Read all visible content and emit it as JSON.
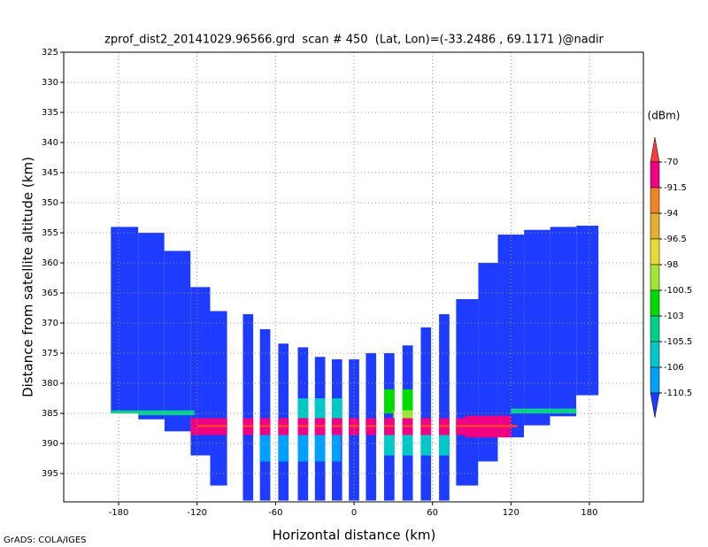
{
  "chart_data": {
    "type": "heatmap",
    "title": "zprof_dist2_20141029.96566.grd  scan # 450  (Lat, Lon)=(-33.2486 , 69.1171 )@nadir",
    "x_label": "Horizontal distance (km)",
    "y_label": "Distance from satellite altitude (km)",
    "footer": "GrADS: COLA/IGES",
    "colorbar_unit": "(dBm)",
    "xlim": [
      -222,
      221.3
    ],
    "ylim": [
      325,
      399.7
    ],
    "y_reversed": true,
    "xticks": [
      -180,
      -120,
      -60,
      0,
      60,
      120,
      180
    ],
    "yticks": [
      325,
      330,
      335,
      340,
      345,
      350,
      355,
      360,
      365,
      370,
      375,
      380,
      385,
      390,
      395
    ],
    "grid": true,
    "levels": [
      -70,
      -91.5,
      -94,
      -96.5,
      -98,
      -100.5,
      -103,
      -105.5,
      -106,
      -110.5
    ],
    "colors": [
      "#fa3c3c",
      "#f00082",
      "#f08228",
      "#e6af2d",
      "#e6dc32",
      "#a0e632",
      "#00dc00",
      "#00d28c",
      "#00c8c8",
      "#00a0ff",
      "#1e3cff"
    ],
    "field": {
      "background_value": -112,
      "columns": [
        {
          "x0": -186,
          "x1": -165,
          "top": 354,
          "bottom": 385
        },
        {
          "x0": -165,
          "x1": -145,
          "top": 355,
          "bottom": 386
        },
        {
          "x0": -145,
          "x1": -125,
          "top": 358,
          "bottom": 388
        },
        {
          "x0": -125,
          "x1": -110,
          "top": 364,
          "bottom": 392
        },
        {
          "x0": -110,
          "x1": -97,
          "top": 368,
          "bottom": 397
        },
        {
          "x0": -85,
          "x1": -77,
          "top": 368.5,
          "bottom": 399.5
        },
        {
          "x0": -72,
          "x1": -64,
          "top": 371,
          "bottom": 399.5
        },
        {
          "x0": -58,
          "x1": -50,
          "top": 373.4,
          "bottom": 399.5
        },
        {
          "x0": -43,
          "x1": -35,
          "top": 374,
          "bottom": 399.5
        },
        {
          "x0": -30,
          "x1": -22,
          "top": 375.6,
          "bottom": 399.5
        },
        {
          "x0": -17,
          "x1": -9,
          "top": 376,
          "bottom": 399.5
        },
        {
          "x0": -4,
          "x1": 4,
          "top": 376,
          "bottom": 399.5
        },
        {
          "x0": 9,
          "x1": 17,
          "top": 375,
          "bottom": 399.5
        },
        {
          "x0": 23,
          "x1": 31,
          "top": 375,
          "bottom": 399.5
        },
        {
          "x0": 37,
          "x1": 45,
          "top": 373.7,
          "bottom": 399.5
        },
        {
          "x0": 51,
          "x1": 59,
          "top": 370.7,
          "bottom": 399.5
        },
        {
          "x0": 65,
          "x1": 73,
          "top": 368.5,
          "bottom": 399.5
        },
        {
          "x0": 78,
          "x1": 95,
          "top": 366,
          "bottom": 397
        },
        {
          "x0": 95,
          "x1": 110,
          "top": 360,
          "bottom": 393
        },
        {
          "x0": 110,
          "x1": 130,
          "top": 355.3,
          "bottom": 389
        },
        {
          "x0": 130,
          "x1": 150,
          "top": 354.5,
          "bottom": 387
        },
        {
          "x0": 150,
          "x1": 170,
          "top": 354,
          "bottom": 385.5
        },
        {
          "x0": 170,
          "x1": 187,
          "top": 353.8,
          "bottom": 382
        }
      ],
      "bands": [
        {
          "x0": -75,
          "x1": -10,
          "y0": 388.5,
          "y1": 393,
          "value": -108
        },
        {
          "x0": 20,
          "x1": 75,
          "y0": 388.5,
          "y1": 392,
          "value": -105.7
        },
        {
          "x0": -45,
          "x1": -5,
          "y0": 382.5,
          "y1": 386,
          "value": -105.7
        },
        {
          "x0": 20,
          "x1": 50,
          "y0": 381,
          "y1": 385,
          "value": -101.5
        },
        {
          "x0": 30,
          "x1": 45,
          "y0": 384.5,
          "y1": 386,
          "value": -99
        },
        {
          "x0": -186,
          "x1": -122,
          "y0": 384.5,
          "y1": 385.3,
          "value": -104
        },
        {
          "x0": 120,
          "x1": 187,
          "y0": 384.2,
          "y1": 385,
          "value": -104
        },
        {
          "x0": -125,
          "x1": 120,
          "y0": 385.8,
          "y1": 388.6,
          "value": -85
        },
        {
          "x0": 85,
          "x1": 120,
          "y0": 385.4,
          "y1": 389,
          "value": -85
        },
        {
          "x0": -120,
          "x1": 125,
          "y0": 386.9,
          "y1": 387.3,
          "value": -65
        }
      ]
    }
  }
}
